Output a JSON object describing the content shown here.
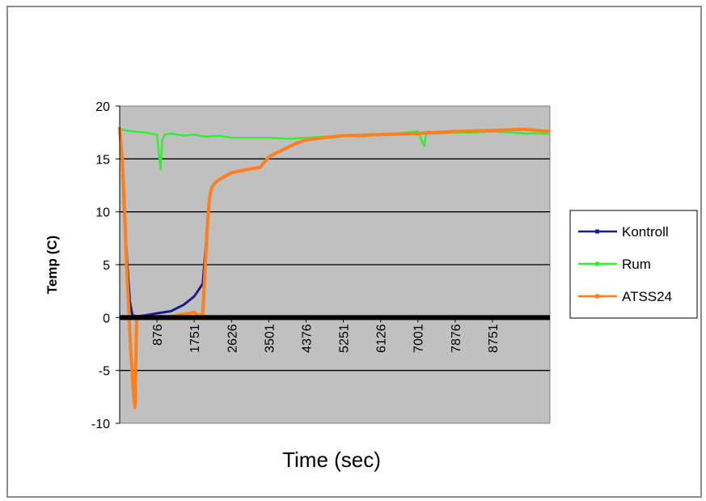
{
  "chart_data": {
    "type": "line",
    "xlabel": "Time (sec)",
    "ylabel": "Temp (C)",
    "ylim": [
      -10,
      20
    ],
    "xlim": [
      1,
      10100
    ],
    "y_ticks": [
      "-10",
      "-5",
      "0",
      "5",
      "10",
      "15",
      "20"
    ],
    "x_ticks": [
      "876",
      "1751",
      "2626",
      "3501",
      "4376",
      "5251",
      "6126",
      "7001",
      "7876",
      "8751"
    ],
    "grid": true,
    "legend": "right",
    "plot_background": "#c0c0c0",
    "series": [
      {
        "name": "Kontroll",
        "color": "#1c1c8c",
        "x": [
          1,
          60,
          120,
          180,
          240,
          300,
          400,
          600,
          876,
          1200,
          1500,
          1751,
          1850,
          1950,
          2050,
          2100,
          2150,
          2250,
          2400,
          2626,
          3000,
          3300,
          3501,
          3800,
          4100,
          4376,
          4800,
          5251,
          6126,
          7001,
          7876,
          8751,
          9500,
          10100
        ],
        "y": [
          18,
          14.5,
          9,
          5,
          1.5,
          0.2,
          0.1,
          0.2,
          0.4,
          0.6,
          1.2,
          2,
          2.6,
          3.2,
          8,
          11,
          12.2,
          12.8,
          13.2,
          13.7,
          14,
          14.2,
          15.2,
          15.8,
          16.4,
          16.8,
          17,
          17.2,
          17.3,
          17.4,
          17.6,
          17.7,
          17.8,
          17.6
        ]
      },
      {
        "name": "Rum",
        "color": "#33ee33",
        "x": [
          1,
          300,
          600,
          876,
          920,
          960,
          1000,
          1050,
          1200,
          1500,
          1751,
          2000,
          2300,
          2626,
          3000,
          3501,
          4000,
          4376,
          4800,
          5251,
          5700,
          6126,
          6500,
          7001,
          7150,
          7200,
          7250,
          7400,
          7876,
          8300,
          8751,
          9200,
          9600,
          10100
        ],
        "y": [
          17.8,
          17.6,
          17.5,
          17.3,
          15.5,
          14,
          16.8,
          17.3,
          17.4,
          17.2,
          17.3,
          17.1,
          17.2,
          17,
          17,
          17,
          16.9,
          17,
          17.1,
          17.2,
          17.1,
          17.3,
          17.4,
          17.6,
          16.2,
          17.5,
          17.6,
          17.4,
          17.5,
          17.5,
          17.6,
          17.5,
          17.4,
          17.4
        ]
      },
      {
        "name": "ATSS24",
        "color": "#ff7f1e",
        "x": [
          1,
          60,
          120,
          160,
          200,
          260,
          320,
          360,
          400,
          600,
          876,
          1200,
          1500,
          1751,
          1850,
          1950,
          2050,
          2100,
          2150,
          2250,
          2400,
          2626,
          3000,
          3300,
          3501,
          3800,
          4100,
          4376,
          4800,
          5251,
          6126,
          7001,
          7876,
          8751,
          9500,
          10100
        ],
        "y": [
          18,
          15,
          10,
          5,
          2,
          -3,
          -7,
          -8.5,
          0,
          0,
          0.1,
          0.1,
          0.3,
          0.5,
          0.2,
          0.3,
          8,
          11,
          12.2,
          12.8,
          13.2,
          13.7,
          14,
          14.2,
          15.2,
          15.8,
          16.4,
          16.8,
          17,
          17.2,
          17.3,
          17.4,
          17.6,
          17.7,
          17.8,
          17.6
        ]
      }
    ]
  }
}
